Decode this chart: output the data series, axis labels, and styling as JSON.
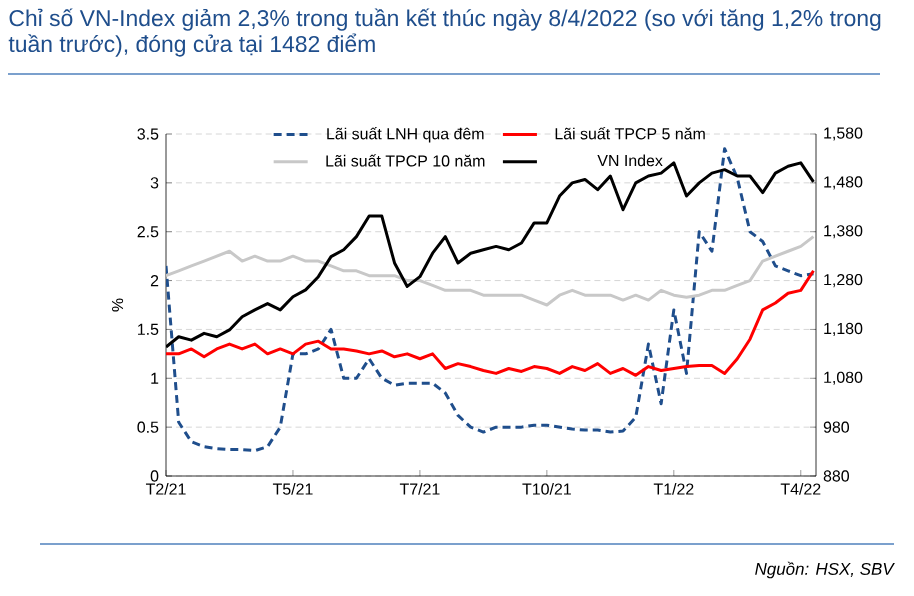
{
  "chart_data": {
    "type": "line",
    "title": "Chỉ số VN-Index giảm 2,3% trong tuần kết thúc ngày 8/4/2022 (so với tăng 1,2% trong tuần trước), đóng cửa tại 1482 điểm",
    "ylabel": "%",
    "categories": [
      "T2/21",
      null,
      null,
      null,
      null,
      null,
      null,
      null,
      null,
      null,
      "T5/21",
      null,
      null,
      null,
      null,
      null,
      null,
      null,
      null,
      null,
      "T7/21",
      null,
      null,
      null,
      null,
      null,
      null,
      null,
      null,
      null,
      "T10/21",
      null,
      null,
      null,
      null,
      null,
      null,
      null,
      null,
      null,
      "T1/22",
      null,
      null,
      null,
      null,
      null,
      null,
      null,
      null,
      null,
      "T4/22",
      null
    ],
    "series": [
      {
        "name": "Lãi suất LNH qua đêm",
        "color": "#1f4e8c",
        "line_style": "dashed",
        "values": [
          2.15,
          0.55,
          0.35,
          0.3,
          0.28,
          0.27,
          0.27,
          0.26,
          0.3,
          0.5,
          1.25,
          1.25,
          1.3,
          1.5,
          1.0,
          1.0,
          1.2,
          1.0,
          0.93,
          0.95,
          0.95,
          0.95,
          0.85,
          0.62,
          0.5,
          0.45,
          0.5,
          0.5,
          0.5,
          0.52,
          0.52,
          0.5,
          0.48,
          0.47,
          0.47,
          0.45,
          0.46,
          0.6,
          1.35,
          0.74,
          1.7,
          1.05,
          2.5,
          2.3,
          3.35,
          3.05,
          2.5,
          2.4,
          2.15,
          2.1,
          2.05,
          2.07
        ]
      },
      {
        "name": "Lãi suất TPCP 5 năm",
        "color": "#ff0000",
        "line_style": "solid",
        "values": [
          1.25,
          1.25,
          1.3,
          1.22,
          1.3,
          1.35,
          1.3,
          1.35,
          1.25,
          1.3,
          1.25,
          1.35,
          1.38,
          1.3,
          1.3,
          1.28,
          1.25,
          1.28,
          1.22,
          1.25,
          1.2,
          1.25,
          1.1,
          1.15,
          1.12,
          1.08,
          1.05,
          1.1,
          1.07,
          1.12,
          1.1,
          1.05,
          1.12,
          1.08,
          1.15,
          1.05,
          1.1,
          1.03,
          1.12,
          1.08,
          1.1,
          1.12,
          1.13,
          1.13,
          1.05,
          1.2,
          1.4,
          1.7,
          1.77,
          1.87,
          1.9,
          2.1
        ]
      },
      {
        "name": "Lãi suất TPCP 10 năm",
        "color": "#c8c8c8",
        "line_style": "solid",
        "values": [
          2.05,
          2.1,
          2.15,
          2.2,
          2.25,
          2.3,
          2.2,
          2.25,
          2.2,
          2.2,
          2.25,
          2.2,
          2.2,
          2.15,
          2.1,
          2.1,
          2.05,
          2.05,
          2.05,
          2.0,
          2.0,
          1.95,
          1.9,
          1.9,
          1.9,
          1.85,
          1.85,
          1.85,
          1.85,
          1.8,
          1.75,
          1.85,
          1.9,
          1.85,
          1.85,
          1.85,
          1.8,
          1.85,
          1.8,
          1.9,
          1.85,
          1.83,
          1.85,
          1.9,
          1.9,
          1.95,
          2.0,
          2.2,
          2.25,
          2.3,
          2.35,
          2.45
        ]
      },
      {
        "name": "VN Index",
        "color": "#000000",
        "line_style": "solid",
        "axis": "y2",
        "values": [
          1144,
          1165,
          1158,
          1172,
          1165,
          1179,
          1206,
          1220,
          1233,
          1220,
          1247,
          1261,
          1288,
          1329,
          1343,
          1370,
          1412,
          1412,
          1316,
          1268,
          1288,
          1336,
          1370,
          1316,
          1336,
          1343,
          1350,
          1343,
          1357,
          1398,
          1398,
          1453,
          1480,
          1487,
          1466,
          1494,
          1425,
          1480,
          1494,
          1500,
          1521,
          1453,
          1480,
          1500,
          1507,
          1494,
          1494,
          1460,
          1500,
          1514,
          1521,
          1482
        ]
      }
    ],
    "ylim": [
      0,
      3.5
    ],
    "yticks": [
      0,
      0.5,
      1,
      1.5,
      2,
      2.5,
      3,
      3.5
    ],
    "y2lim": [
      880,
      1580
    ],
    "y2ticks": [
      880,
      980,
      {
        "value": 1080,
        "label": "1,080"
      },
      {
        "value": 1180,
        "label": "1,180"
      },
      {
        "value": 1280,
        "label": "1,280"
      },
      {
        "value": 1380,
        "label": "1,380"
      },
      {
        "value": 1480,
        "label": "1,480"
      },
      {
        "value": 1580,
        "label": "1,580"
      }
    ],
    "grid": "y",
    "legend": "top",
    "annotations": [
      "Nguồn: HSX, SBV"
    ]
  }
}
